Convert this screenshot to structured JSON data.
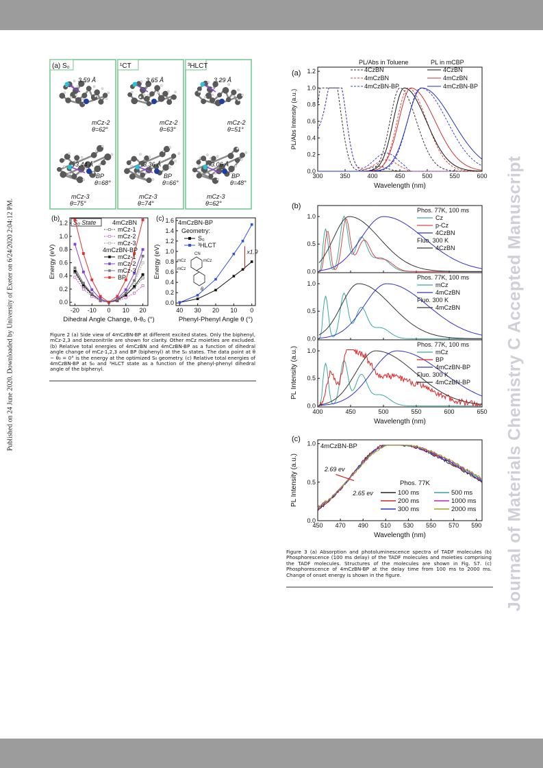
{
  "side_note": "Published on 24 June 2020. Downloaded by University of Exeter on 6/24/2020 2:04:12 PM.",
  "watermark": "Journal of Materials Chemistry C Accepted Manuscript",
  "fig2": {
    "panels": [
      {
        "label": "(a) S₀",
        "top": {
          "distance": "3.59 Å",
          "name": "mCz-2",
          "angle": "θ=62°"
        },
        "bottom": {
          "distance": "3.44 Å",
          "name": "BP",
          "angle": "θ=68°",
          "name2": "mCz-3",
          "angle2": "θ=75°"
        }
      },
      {
        "label": "¹CT",
        "top": {
          "distance": "3.65 Å",
          "name": "mCz-2",
          "angle": "θ=63°"
        },
        "bottom": {
          "distance": "3.36 Å",
          "name": "BP",
          "angle": "θ=66°",
          "name2": "mCz-3",
          "angle2": "θ=74°"
        }
      },
      {
        "label": "³HLCT",
        "top": {
          "distance": "3.29 Å",
          "name": "mCz-2",
          "angle": "θ=51°"
        },
        "bottom": {
          "distance": "3.06 Å",
          "name": "BP",
          "angle": "θ=48°",
          "name2": "mCz-3",
          "angle2": "θ=62°"
        }
      }
    ],
    "caption": "Figure 2 (a) Side view of 4mCzBN-BP at different excited states. Only the biphenyl, mCz-2,3 and benzonitrile are shown for clarity. Other mCz moieties are excluded. (b) Relative total energies of 4mCzBN and 4mCzBN-BP as a function of dihedral angle change of mCz-1,2,3 and BP (biphenyl) at the S₀ states. The data point at θ − θ₀ = 0° is the energy at the optimized S₀ geometry. (c) Relative total energies of 4mCzBN-BP at S₀ and ³HLCT state as a function of the phenyl-phenyl dihedral angle of the biphenyl."
  },
  "fig3": {
    "caption": "Figure 3 (a) Absorption and photoluminescence spectra of TADF molecules (b) Phosphorescence (100 ms delay) of the TADF molecules and moieties comprising the TADF molecules. Structures of the molecules are shown in Fig. S7. (c) Phosphorescence of 4mCzBN-BP at the delay time from 100 ms to 2000 ms. Change of onset energy is shown in the figure."
  },
  "chart_data": [
    {
      "id": "fig2b",
      "type": "line",
      "panel_label": "(b)",
      "annotation": "S₀ State",
      "xlabel": "Dihedral Angle Change, θ-θ₀ (°)",
      "ylabel": "Energy (eV)",
      "xlim": [
        -23,
        23
      ],
      "ylim": [
        -0.05,
        1.28
      ],
      "xticks": [
        "-20",
        "-10",
        "0",
        "10",
        "20"
      ],
      "yticks": [
        "0.0",
        "0.2",
        "0.4",
        "0.6",
        "0.8",
        "1.0",
        "1.2"
      ],
      "legend_groups": [
        "4mCzBN",
        "4mCzBN-BP"
      ],
      "x": [
        -20,
        -15,
        -10,
        -5,
        0,
        5,
        10,
        15,
        20
      ],
      "series": [
        {
          "name": "mCz-1",
          "group": "4mCzBN",
          "color": "#555555",
          "dashed": true,
          "values": [
            0.45,
            0.24,
            0.11,
            0.03,
            0.0,
            0.03,
            0.11,
            0.22,
            0.37
          ]
        },
        {
          "name": "mCz-2",
          "group": "4mCzBN",
          "color": "#c050c0",
          "dashed": true,
          "values": [
            0.38,
            0.2,
            0.09,
            0.02,
            0.0,
            0.02,
            0.07,
            0.14,
            0.25
          ]
        },
        {
          "name": "mCz-3",
          "group": "4mCzBN",
          "color": "#9a9a9a",
          "dashed": true,
          "values": [
            0.5,
            0.28,
            0.13,
            0.03,
            0.0,
            0.04,
            0.13,
            0.3,
            0.6
          ]
        },
        {
          "name": "mCz-1",
          "group": "4mCzBN-BP",
          "color": "#111111",
          "dashed": false,
          "values": [
            0.47,
            0.26,
            0.12,
            0.03,
            0.0,
            0.03,
            0.11,
            0.24,
            0.42
          ]
        },
        {
          "name": "mCz-2",
          "group": "4mCzBN-BP",
          "color": "#8040e0",
          "dashed": false,
          "values": [
            0.88,
            0.46,
            0.19,
            0.05,
            0.0,
            0.05,
            0.19,
            0.44,
            0.8
          ]
        },
        {
          "name": "mCz-3",
          "group": "4mCzBN-BP",
          "color": "#777777",
          "dashed": false,
          "values": [
            0.52,
            0.29,
            0.13,
            0.03,
            0.0,
            0.04,
            0.14,
            0.33,
            0.7
          ]
        },
        {
          "name": "BP",
          "group": "4mCzBN-BP",
          "color": "#e03030",
          "dashed": false,
          "values": [
            1.25,
            0.74,
            0.34,
            0.09,
            0.0,
            0.09,
            0.34,
            0.74,
            1.25
          ]
        }
      ]
    },
    {
      "id": "fig2c",
      "type": "line",
      "panel_label": "(c)",
      "title": "4mCzBN-BP",
      "legend_title": "Geometry:",
      "annotation": "x1.9",
      "xlabel": "Phenyl-Phenyl Angle θ (°)",
      "ylabel": "Energy (eV)",
      "xlim": [
        42,
        -2
      ],
      "ylim": [
        -0.05,
        1.65
      ],
      "xticks": [
        "40",
        "30",
        "20",
        "10",
        "0"
      ],
      "yticks": [
        "0.0",
        "0.2",
        "0.4",
        "0.6",
        "0.8",
        "1.0",
        "1.2",
        "1.4",
        "1.6"
      ],
      "structure_labels": [
        "CN",
        "mCz",
        "mCz",
        "mCz",
        "θ"
      ],
      "x": [
        40,
        30,
        20,
        10,
        5,
        0
      ],
      "series": [
        {
          "name": "S₀",
          "color": "#111111",
          "marker": "square",
          "values": [
            0.01,
            0.08,
            0.25,
            0.52,
            0.65,
            0.8
          ]
        },
        {
          "name": "³HLCT",
          "color": "#3050e0",
          "marker": "square",
          "values": [
            0.01,
            0.15,
            0.46,
            0.95,
            1.2,
            1.52
          ]
        }
      ]
    },
    {
      "id": "fig3a",
      "type": "line",
      "panel_label": "(a)",
      "xlabel": "Wavelength (nm)",
      "ylabel": "PL/Abs Intensity (a.u.)",
      "xlim": [
        300,
        600
      ],
      "ylim": [
        0,
        1.25
      ],
      "xticks": [
        "300",
        "350",
        "400",
        "450",
        "500",
        "550",
        "600"
      ],
      "yticks": [
        "0.0",
        "0.2",
        "0.4",
        "0.6",
        "0.8",
        "1.0",
        "1.2"
      ],
      "legend_groups": [
        "PL/Abs in Toluene",
        "PL in mCBP"
      ],
      "series": [
        {
          "name": "4CzBN",
          "group": "PL/Abs in Toluene",
          "kind": "abs",
          "color": "#333333",
          "dashed": true,
          "peaks": [
            [
              330,
              1.0,
              14
            ],
            [
              315,
              0.7,
              10
            ],
            [
              410,
              0.06,
              16
            ]
          ]
        },
        {
          "name": "4mCzBN",
          "group": "PL/Abs in Toluene",
          "kind": "abs",
          "color": "#e04040",
          "dashed": true,
          "peaks": [
            [
              340,
              1.0,
              13
            ],
            [
              322,
              0.55,
              10
            ],
            [
              425,
              0.14,
              20
            ]
          ]
        },
        {
          "name": "4mCzBN-BP",
          "group": "PL/Abs in Toluene",
          "kind": "abs",
          "color": "#4040d0",
          "dashed": true,
          "peaks": [
            [
              340,
              1.0,
              13
            ],
            [
              322,
              0.55,
              10
            ],
            [
              425,
              0.22,
              22
            ]
          ]
        },
        {
          "name": "4CzBN",
          "group": "PL/Abs in Toluene",
          "kind": "pl",
          "color": "#333333",
          "dashed": true,
          "peak": 450,
          "w_lo": 18,
          "w_hi": 30
        },
        {
          "name": "4mCzBN",
          "group": "PL/Abs in Toluene",
          "kind": "pl",
          "color": "#e04040",
          "dashed": true,
          "peak": 465,
          "w_lo": 20,
          "w_hi": 34
        },
        {
          "name": "4mCzBN-BP",
          "group": "PL/Abs in Toluene",
          "kind": "pl",
          "color": "#4040d0",
          "dashed": true,
          "peak": 488,
          "w_lo": 24,
          "w_hi": 48
        },
        {
          "name": "4CzBN",
          "group": "PL in mCBP",
          "kind": "pl",
          "color": "#111111",
          "dashed": false,
          "peak": 458,
          "w_lo": 20,
          "w_hi": 40
        },
        {
          "name": "4mCzBN",
          "group": "PL in mCBP",
          "kind": "pl",
          "color": "#d03030",
          "dashed": false,
          "peak": 470,
          "w_lo": 22,
          "w_hi": 44
        },
        {
          "name": "4mCzBN-BP",
          "group": "PL in mCBP",
          "kind": "pl",
          "color": "#2030c0",
          "dashed": false,
          "peak": 490,
          "w_lo": 26,
          "w_hi": 56
        }
      ]
    },
    {
      "id": "fig3b",
      "type": "line",
      "panel_label": "(b)",
      "xlabel": "Wavelength (nm)",
      "ylabel": "PL Intensity (a.u.)",
      "xlim": [
        400,
        650
      ],
      "xticks": [
        "400",
        "450",
        "500",
        "550",
        "600",
        "650"
      ],
      "yticks": [
        "0.0",
        "0.5",
        "1.0"
      ],
      "subplots": [
        {
          "legend_titles": [
            "Phos. 77K, 100 ms",
            "Fluo. 300 K"
          ],
          "series": [
            {
              "name": "Cz",
              "group": "Phos. 77K, 100 ms",
              "color": "#3aa8a0",
              "kind": "vib",
              "peaks": [
                [
                  412,
                  0.78,
                  4
                ],
                [
                  440,
                  1.0,
                  6
                ],
                [
                  466,
                  0.6,
                  9
                ],
                [
                  495,
                  0.25,
                  14
                ]
              ]
            },
            {
              "name": "p-Cz",
              "group": "Phos. 77K, 100 ms",
              "color": "#e04040",
              "kind": "vib",
              "peaks": [
                [
                  415,
                  0.75,
                  4
                ],
                [
                  443,
                  0.95,
                  6
                ],
                [
                  470,
                  0.55,
                  10
                ],
                [
                  500,
                  0.22,
                  14
                ]
              ]
            },
            {
              "name": "4CzBN",
              "group": "Phos. 77K, 100 ms",
              "color": "#3030d0",
              "kind": "broad",
              "peak": 500,
              "w_lo": 34,
              "w_hi": 62
            },
            {
              "name": "4CzBN",
              "group": "Fluo. 300 K",
              "color": "#333333",
              "kind": "broad",
              "peak": 448,
              "w_lo": 24,
              "w_hi": 46
            }
          ]
        },
        {
          "legend_titles": [
            "Phos. 77K, 100 ms",
            "Fluo. 300 K"
          ],
          "series": [
            {
              "name": "mCz",
              "group": "Phos. 77K, 100 ms",
              "color": "#3aa8a0",
              "kind": "vib",
              "peaks": [
                [
                  412,
                  0.78,
                  4
                ],
                [
                  440,
                  0.82,
                  6
                ],
                [
                  466,
                  0.55,
                  9
                ],
                [
                  495,
                  0.2,
                  14
                ]
              ]
            },
            {
              "name": "4mCzBN",
              "group": "Phos. 77K, 100 ms",
              "color": "#3030d0",
              "kind": "broad",
              "peak": 505,
              "w_lo": 34,
              "w_hi": 62
            },
            {
              "name": "4mCzBN",
              "group": "Fluo. 300 K",
              "color": "#333333",
              "kind": "broad",
              "peak": 462,
              "w_lo": 26,
              "w_hi": 50
            }
          ]
        },
        {
          "legend_titles": [
            "Phos. 77K, 100 ms",
            "Fluo. 300 K"
          ],
          "series": [
            {
              "name": "mCz",
              "group": "Phos. 77K, 100 ms",
              "color": "#3aa8a0",
              "kind": "vib",
              "peaks": [
                [
                  412,
                  0.78,
                  4
                ],
                [
                  440,
                  0.82,
                  6
                ],
                [
                  466,
                  0.55,
                  9
                ],
                [
                  495,
                  0.2,
                  14
                ]
              ]
            },
            {
              "name": "BP",
              "group": "Phos. 77K, 100 ms",
              "color": "#e02020",
              "kind": "noisy",
              "peaks": [
                [
                  420,
                  0.55,
                  6
                ],
                [
                  445,
                  0.68,
                  8
                ],
                [
                  465,
                  0.6,
                  14
                ],
                [
                  500,
                  0.45,
                  40
                ],
                [
                  560,
                  0.2,
                  40
                ]
              ]
            },
            {
              "name": "4mCzBN-BP",
              "group": "Phos. 77K, 100 ms",
              "color": "#3030d0",
              "kind": "broad",
              "peak": 520,
              "w_lo": 38,
              "w_hi": 70
            },
            {
              "name": "4mCzBN-BP",
              "group": "Fluo. 300 K",
              "color": "#333333",
              "kind": "broad",
              "peak": 488,
              "w_lo": 30,
              "w_hi": 60
            }
          ]
        }
      ]
    },
    {
      "id": "fig3c",
      "type": "line",
      "panel_label": "(c)",
      "title": "4mCzBN-BP",
      "legend_title": "Phos. 77K",
      "xlabel": "Wavelength (nm)",
      "ylabel": "PL Intensity (a.u.)",
      "xlim": [
        450,
        595
      ],
      "ylim": [
        0,
        1.05
      ],
      "xticks": [
        "450",
        "470",
        "490",
        "510",
        "530",
        "550",
        "570",
        "590"
      ],
      "yticks": [
        "0.0",
        "0.5",
        "1.0"
      ],
      "annotations": [
        "2.69 ev",
        "2.65 ev"
      ],
      "series": [
        {
          "name": "100 ms",
          "color": "#222222",
          "peak": 513,
          "shift": 0
        },
        {
          "name": "200 ms",
          "color": "#d02020",
          "peak": 514,
          "shift": 1.5
        },
        {
          "name": "300 ms",
          "color": "#2030d0",
          "peak": 515,
          "shift": 3
        },
        {
          "name": "500 ms",
          "color": "#30a0a0",
          "peak": 516,
          "shift": 4.5
        },
        {
          "name": "1000 ms",
          "color": "#c020c0",
          "peak": 517,
          "shift": 6
        },
        {
          "name": "2000 ms",
          "color": "#a0a020",
          "peak": 518,
          "shift": 7.5
        }
      ]
    }
  ]
}
